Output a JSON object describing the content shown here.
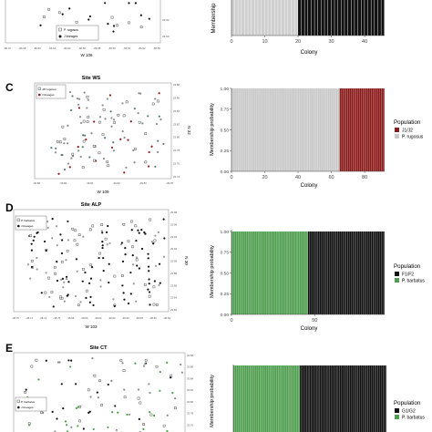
{
  "panels": [
    {
      "letter": "",
      "map": {
        "title": "",
        "xlabel": "W 106",
        "ylabel": "",
        "xticks": [
          "-86.70",
          "-86.68",
          "-86.66",
          "-86.64",
          "-86.62",
          "-86.60",
          "-86.58",
          "-86.56",
          "-86.54",
          "-86.52",
          "-86.50"
        ],
        "yticks": [
          "33.62",
          "33.60"
        ],
        "legend": [
          "P. rugosus",
          "J lineages"
        ]
      },
      "chart_data": {
        "type": "bar",
        "ylabel": "Membership",
        "xlabel": "Colony",
        "xticks": [
          "0",
          "10",
          "20",
          "30",
          "40"
        ],
        "xlim": [
          0,
          46
        ],
        "ylim": [
          0,
          1
        ],
        "n": 46,
        "series": [
          {
            "colony_from": 1,
            "colony_to": 20,
            "value": 1.0,
            "color": "#cfcfcf"
          },
          {
            "colony_from": 21,
            "colony_to": 46,
            "value": 1.0,
            "color": "#111111"
          }
        ],
        "legend": []
      }
    },
    {
      "letter": "C",
      "map": {
        "title": "Site WS",
        "xlabel": "W 109",
        "ylabel": "N 32",
        "xticks": [
          "-39.88",
          "-39.86",
          "-39.84",
          "-39.82",
          "-39.80",
          "-39.78"
        ],
        "yticks": [
          "23.88",
          "23.86",
          "23.84",
          "23.82",
          "23.80",
          "23.78",
          "23.76",
          "23.74"
        ],
        "legend": [
          "J/P rugosus",
          "J lineages"
        ]
      },
      "chart_data": {
        "type": "bar",
        "ylabel": "Membership probability",
        "xlabel": "Colony",
        "yticks": [
          "0.00",
          "0.25",
          "0.50",
          "0.75",
          "1.00"
        ],
        "xticks": [
          "0",
          "20",
          "40",
          "60",
          "80"
        ],
        "xlim": [
          0,
          92
        ],
        "ylim": [
          0,
          1
        ],
        "n": 92,
        "series": [
          {
            "colony_from": 1,
            "colony_to": 65,
            "value": 1.0,
            "color": "#c8c8c8"
          },
          {
            "colony_from": 66,
            "colony_to": 92,
            "value": 1.0,
            "color": "#8b1a1a"
          }
        ],
        "legend_title": "Population",
        "legend": [
          {
            "label": "J1/J2",
            "color": "#8b1a1a"
          },
          {
            "label": "P. rugosus",
            "color": "#c8c8c8"
          }
        ]
      }
    },
    {
      "letter": "D",
      "map": {
        "title": "Site ALP",
        "xlabel": "W 103",
        "ylabel": "N 30",
        "xticks": [
          "-38.76",
          "-38.74",
          "-38.72",
          "-38.70",
          "-38.68",
          "-38.66",
          "-38.64",
          "-38.62",
          "-38.60",
          "-38.58",
          "-38.56",
          "-38.54"
        ],
        "yticks": [
          "23.98",
          "23.96",
          "23.94",
          "23.92",
          "23.90",
          "23.88",
          "23.86",
          "23.84",
          "23.82"
        ],
        "legend": [
          "P. barbatus",
          "J lineages"
        ]
      },
      "chart_data": {
        "type": "bar",
        "ylabel": "Membership probability",
        "xlabel": "Colony",
        "yticks": [
          "0.00",
          "0.25",
          "0.50",
          "0.75",
          "1.00"
        ],
        "xticks": [
          "0",
          "50"
        ],
        "xlim": [
          0,
          92
        ],
        "ylim": [
          0,
          1
        ],
        "n": 92,
        "series": [
          {
            "colony_from": 1,
            "colony_to": 46,
            "value": 1.0,
            "color": "#4f9e4f"
          },
          {
            "colony_from": 47,
            "colony_to": 92,
            "value": 1.0,
            "color": "#111111"
          }
        ],
        "legend_title": "Population",
        "legend": [
          {
            "label": "F1/F2",
            "color": "#111111"
          },
          {
            "label": "P. barbatus",
            "color": "#4f9e4f"
          }
        ]
      }
    },
    {
      "letter": "E",
      "map": {
        "title": "Site CT",
        "xlabel": "",
        "ylabel": "",
        "xticks": [],
        "yticks": [
          "33.88",
          "33.86",
          "33.84",
          "33.82",
          "33.80",
          "33.78",
          "33.76",
          "33.74"
        ],
        "legend": [
          "P. barbatus",
          "J lineages"
        ]
      },
      "chart_data": {
        "type": "bar",
        "ylabel": "Membership probability",
        "xlabel": "",
        "yticks": [],
        "xticks": [],
        "xlim": [
          0,
          92
        ],
        "ylim": [
          0,
          1
        ],
        "n": 92,
        "series": [
          {
            "colony_from": 1,
            "colony_to": 40,
            "value": 1.0,
            "color": "#4f9e4f"
          },
          {
            "colony_from": 41,
            "colony_to": 92,
            "value": 1.0,
            "color": "#111111"
          }
        ],
        "legend_title": "Population",
        "legend": [
          {
            "label": "G1/G2",
            "color": "#111111"
          },
          {
            "label": "P. barbatus",
            "color": "#4f9e4f"
          }
        ]
      }
    }
  ]
}
